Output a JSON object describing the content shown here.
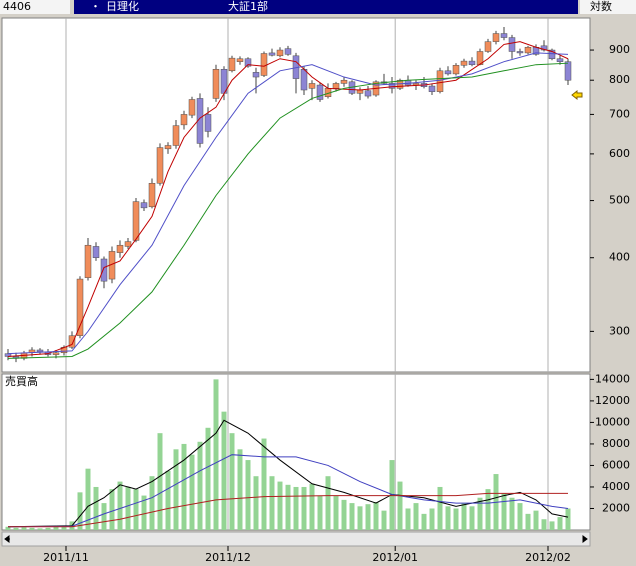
{
  "header": {
    "code": "4406",
    "bullet": "・",
    "name": "日理化",
    "market": "大証1部",
    "scale_label": "対数"
  },
  "chart_data": [
    {
      "type": "candlestick",
      "log_scale": true,
      "grid": false,
      "up_color": "#f08c5a",
      "down_color": "#8c84d4",
      "categories": [
        null,
        null,
        null,
        null,
        null,
        null,
        null,
        null,
        null,
        null,
        null,
        null,
        null,
        null,
        null,
        null,
        null,
        null,
        null,
        null,
        null,
        null,
        null,
        null,
        null,
        null,
        null,
        null,
        null,
        null,
        null,
        null,
        null,
        null,
        null,
        null,
        null,
        null,
        null,
        null,
        null,
        null,
        null,
        null,
        null,
        null,
        null,
        null,
        null,
        null,
        null,
        null,
        null,
        null,
        null,
        null,
        null,
        null,
        null,
        null,
        null,
        null,
        null,
        null,
        null,
        null,
        null,
        null,
        null,
        null,
        null
      ],
      "open": [
        275,
        272,
        270,
        276,
        279,
        277,
        274,
        276,
        282,
        295,
        370,
        418,
        398,
        368,
        408,
        418,
        428,
        496,
        488,
        535,
        612,
        620,
        672,
        698,
        745,
        700,
        745,
        835,
        830,
        860,
        870,
        825,
        815,
        890,
        880,
        905,
        880,
        835,
        775,
        785,
        750,
        775,
        790,
        795,
        760,
        768,
        755,
        795,
        790,
        775,
        800,
        785,
        790,
        782,
        765,
        830,
        820,
        848,
        862,
        850,
        895,
        930,
        960,
        945,
        895,
        890,
        910,
        915,
        900,
        870,
        860
      ],
      "high": [
        280,
        276,
        278,
        282,
        281,
        280,
        279,
        284,
        300,
        372,
        432,
        425,
        402,
        418,
        428,
        432,
        505,
        502,
        545,
        625,
        628,
        685,
        710,
        750,
        760,
        720,
        850,
        845,
        880,
        878,
        875,
        840,
        895,
        905,
        910,
        915,
        890,
        845,
        800,
        792,
        790,
        795,
        810,
        800,
        778,
        782,
        800,
        820,
        810,
        805,
        815,
        800,
        810,
        790,
        840,
        845,
        855,
        870,
        875,
        905,
        940,
        970,
        985,
        955,
        905,
        915,
        920,
        935,
        905,
        880,
        870
      ],
      "low": [
        268,
        266,
        268,
        272,
        274,
        272,
        270,
        273,
        280,
        292,
        366,
        395,
        355,
        362,
        400,
        414,
        425,
        480,
        485,
        530,
        600,
        612,
        660,
        690,
        615,
        640,
        735,
        740,
        825,
        850,
        840,
        760,
        810,
        878,
        875,
        880,
        760,
        755,
        740,
        735,
        745,
        765,
        780,
        755,
        740,
        745,
        750,
        785,
        760,
        770,
        780,
        770,
        775,
        755,
        760,
        815,
        815,
        840,
        845,
        848,
        890,
        920,
        935,
        870,
        880,
        885,
        880,
        895,
        865,
        850,
        785
      ],
      "close": [
        272,
        270,
        276,
        279,
        277,
        274,
        276,
        282,
        295,
        368,
        420,
        400,
        365,
        410,
        420,
        426,
        498,
        486,
        535,
        615,
        620,
        670,
        700,
        742,
        625,
        655,
        835,
        760,
        872,
        870,
        845,
        810,
        888,
        882,
        900,
        885,
        805,
        770,
        790,
        742,
        775,
        790,
        800,
        760,
        770,
        752,
        795,
        790,
        775,
        800,
        785,
        790,
        780,
        765,
        830,
        820,
        848,
        862,
        850,
        895,
        930,
        960,
        945,
        895,
        890,
        910,
        885,
        900,
        870,
        860,
        800
      ],
      "series": [
        {
          "color": "#c00000",
          "x": [
            0,
            5,
            8,
            10,
            12,
            14,
            16,
            18,
            20,
            22,
            24,
            26,
            28,
            30,
            32,
            34,
            36,
            38,
            40,
            44,
            48,
            52,
            56,
            60,
            62,
            64,
            66,
            68,
            70
          ],
          "values": [
            272,
            275,
            285,
            330,
            385,
            395,
            430,
            470,
            560,
            640,
            690,
            720,
            800,
            850,
            845,
            870,
            860,
            810,
            775,
            770,
            780,
            785,
            800,
            870,
            920,
            930,
            910,
            895,
            870
          ]
        },
        {
          "color": "#5050c8",
          "x": [
            0,
            8,
            10,
            14,
            18,
            22,
            26,
            30,
            34,
            38,
            42,
            46,
            50,
            54,
            58,
            62,
            66,
            70
          ],
          "values": [
            275,
            278,
            300,
            360,
            420,
            530,
            640,
            760,
            830,
            850,
            810,
            785,
            790,
            800,
            820,
            860,
            890,
            885
          ]
        },
        {
          "color": "#209020",
          "x": [
            0,
            8,
            10,
            14,
            18,
            22,
            26,
            30,
            34,
            38,
            42,
            46,
            50,
            54,
            58,
            62,
            66,
            70
          ],
          "values": [
            270,
            272,
            280,
            310,
            350,
            420,
            510,
            600,
            690,
            745,
            775,
            790,
            800,
            805,
            810,
            830,
            850,
            855
          ]
        }
      ],
      "ylim": [
        256,
        1020
      ],
      "yticks": [
        300,
        400,
        500,
        600,
        700,
        800,
        900
      ]
    },
    {
      "type": "bar",
      "title": "売買高",
      "color": "#94d494",
      "values": [
        300,
        200,
        250,
        200,
        150,
        200,
        300,
        400,
        800,
        3500,
        5700,
        4000,
        2500,
        3800,
        4500,
        4000,
        3800,
        3200,
        5000,
        9000,
        5500,
        7500,
        8000,
        7000,
        8200,
        9500,
        14000,
        11000,
        9000,
        7500,
        6500,
        5000,
        8500,
        5000,
        4500,
        4200,
        4000,
        4000,
        4300,
        3200,
        5000,
        3200,
        2800,
        2500,
        2200,
        2400,
        2600,
        1800,
        6500,
        4500,
        2000,
        2500,
        1500,
        2000,
        4000,
        2200,
        2000,
        2500,
        2200,
        3000,
        3800,
        5200,
        3400,
        3000,
        2500,
        1500,
        1800,
        1000,
        800,
        1200,
        2000
      ],
      "series": [
        {
          "color": "#000000",
          "x": [
            0,
            8,
            10,
            12,
            14,
            16,
            18,
            22,
            26,
            27,
            30,
            34,
            38,
            42,
            46,
            48,
            52,
            56,
            60,
            62,
            64,
            66,
            68,
            70
          ],
          "values": [
            300,
            400,
            2200,
            3000,
            4200,
            3800,
            4500,
            6500,
            9000,
            10200,
            9000,
            6500,
            4300,
            3500,
            2500,
            3300,
            3000,
            2200,
            2800,
            3200,
            3500,
            2800,
            1500,
            1200
          ]
        },
        {
          "color": "#4040c0",
          "x": [
            0,
            8,
            12,
            18,
            24,
            28,
            32,
            36,
            40,
            44,
            48,
            52,
            56,
            60,
            64,
            68,
            70
          ],
          "values": [
            300,
            350,
            1500,
            3000,
            5500,
            7000,
            6800,
            6800,
            6000,
            4500,
            3300,
            2800,
            2500,
            2500,
            2800,
            2200,
            2000
          ]
        },
        {
          "color": "#b02020",
          "x": [
            0,
            8,
            14,
            20,
            26,
            32,
            40,
            50,
            56,
            60,
            70
          ],
          "values": [
            300,
            300,
            1000,
            2000,
            2800,
            3100,
            3200,
            3200,
            3200,
            3400,
            3400
          ]
        }
      ],
      "ylim": [
        0,
        14500
      ],
      "yticks": [
        2000,
        4000,
        6000,
        8000,
        10000,
        12000,
        14000
      ],
      "xticks": [
        {
          "value": 7.25,
          "label": "2011/11"
        },
        {
          "value": 27.5,
          "label": "2011/12"
        },
        {
          "value": 48.4,
          "label": "2012/01"
        },
        {
          "value": 67.5,
          "label": "2012/02"
        }
      ]
    }
  ]
}
